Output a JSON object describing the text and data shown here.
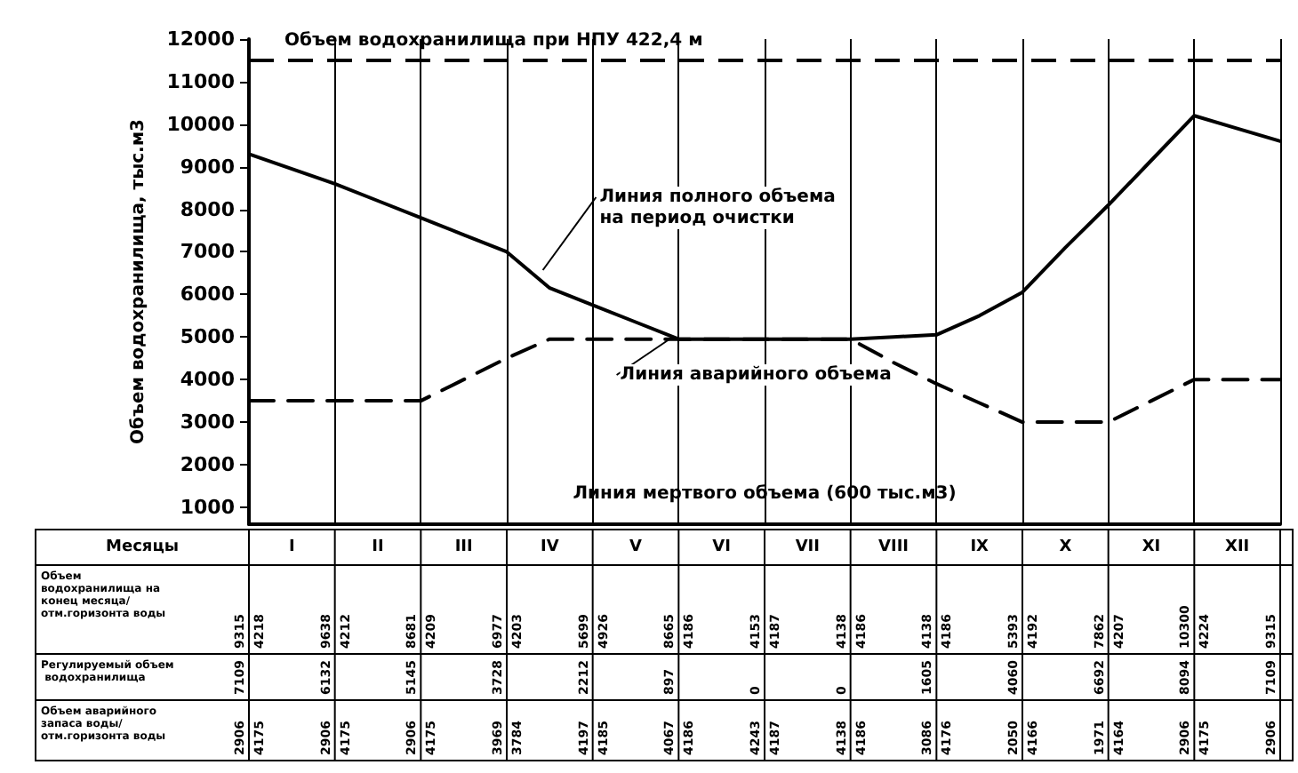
{
  "chart_data": {
    "type": "line",
    "ylabel": "Объем водохранилища, тыс.м3",
    "categories": [
      null,
      null,
      null,
      null,
      null,
      null,
      null,
      null,
      null,
      null,
      null,
      null,
      null,
      null,
      null,
      null,
      null,
      null,
      null,
      null,
      null,
      null,
      null,
      null,
      null
    ],
    "ylim": [
      600,
      12000
    ],
    "yticks": [
      1000,
      2000,
      3000,
      4000,
      5000,
      6000,
      7000,
      8000,
      9000,
      10000,
      11000,
      12000
    ],
    "tick_labels": "y",
    "grid": "x",
    "marker": "none",
    "series": [
      {
        "color": "#000000",
        "line_style": "solid",
        "values": [
          9300,
          8950,
          8600,
          8200,
          7800,
          7400,
          7000,
          6150,
          5750,
          5350,
          4950,
          4950,
          4950,
          4950,
          4950,
          5000,
          5050,
          5500,
          6050,
          7100,
          8100,
          9150,
          10200,
          9900,
          9600
        ]
      },
      {
        "color": "#000000",
        "line_style": "dashed",
        "values": [
          3500,
          3500,
          3500,
          3500,
          3500,
          4000,
          4500,
          4950,
          4950,
          4950,
          4950,
          4950,
          4950,
          4950,
          4950,
          4400,
          3900,
          3450,
          3000,
          3000,
          3000,
          3500,
          4000,
          4000,
          4000
        ]
      }
    ],
    "ref_lines": [
      {
        "axis": "y",
        "value": 11500,
        "label": "Объем водохранилища при НПУ 422,4 м",
        "line_style": "dashed",
        "color": "#000000"
      },
      {
        "axis": "y",
        "value": 600,
        "label": "Линия мертвого объема (600 тыс.м3)",
        "line_style": "solid",
        "color": "#000000"
      }
    ],
    "annotations": [
      "Линия полного объема на период очистки",
      "Линия аварийного объема",
      "Месяцы",
      "I II III IV V VI VII VIII IX X XI XII",
      "Объем водохранилища на конец месяца/отм.горизонта воды",
      "9315 4218 9638 4212 8681 4209 6977 4203 5699 4926 8665 4186 4153 4187 4138 4186 4138 4186 5393 4192 7862 4207 10300 4224 9315",
      "Регулируемый объем водохранилища",
      "7109 6132 5145 3728 2212 897 0 0 1605 4060 6692 8094 7109",
      "Объем аварийного запаса воды/отм.горизонта воды",
      "2906 4175 2906 4175 2906 4175 3969 3784 4197 4185 4067 4186 4243 4187 4138 4186 3086 4176 2050 4166 1971 4164 2906 4175 2906"
    ]
  }
}
